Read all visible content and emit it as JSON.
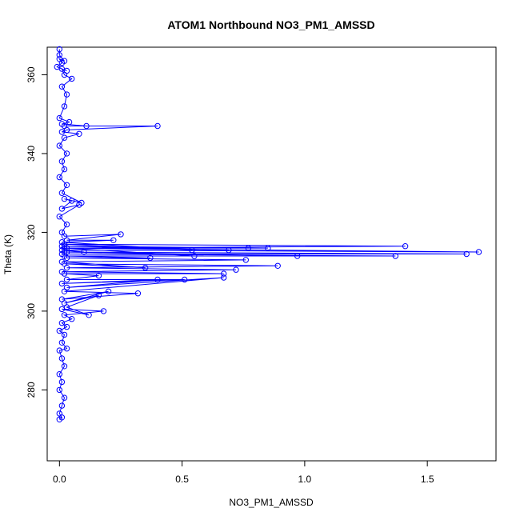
{
  "chart_data": {
    "type": "line",
    "title": "ATOM1 Northbound NO3_PM1_AMSSD",
    "xlabel": "NO3_PM1_AMSSD",
    "ylabel": "Theta (K)",
    "xlim": [
      -0.05,
      1.78
    ],
    "ylim": [
      262,
      367
    ],
    "x_ticks": [
      0.0,
      0.5,
      1.0,
      1.5
    ],
    "x_tick_labels": [
      "0.0",
      "0.5",
      "1.0",
      "1.5"
    ],
    "y_ticks": [
      280,
      300,
      320,
      340,
      360
    ],
    "y_tick_labels": [
      "280",
      "300",
      "320",
      "340",
      "360"
    ],
    "grid": false,
    "colors": {
      "series": "#0000ff",
      "axis": "#000000",
      "background": "#ffffff"
    },
    "series": [
      {
        "marker": "open-circle",
        "points": [
          [
            0.0,
            272.5
          ],
          [
            0.01,
            273.0
          ],
          [
            0.0,
            274.0
          ],
          [
            0.01,
            276.0
          ],
          [
            0.02,
            278.0
          ],
          [
            0.0,
            280.0
          ],
          [
            0.01,
            282.0
          ],
          [
            0.0,
            284.0
          ],
          [
            0.02,
            286.0
          ],
          [
            0.01,
            288.0
          ],
          [
            0.0,
            290.0
          ],
          [
            0.03,
            290.5
          ],
          [
            0.01,
            292.0
          ],
          [
            0.02,
            294.0
          ],
          [
            0.0,
            295.0
          ],
          [
            0.03,
            296.0
          ],
          [
            0.01,
            297.0
          ],
          [
            0.05,
            298.0
          ],
          [
            0.02,
            299.0
          ],
          [
            0.18,
            300.0
          ],
          [
            0.01,
            300.5
          ],
          [
            0.12,
            299.0
          ],
          [
            0.03,
            301.0
          ],
          [
            0.16,
            304.0
          ],
          [
            0.02,
            302.0
          ],
          [
            0.2,
            305.0
          ],
          [
            0.01,
            303.0
          ],
          [
            0.32,
            304.5
          ],
          [
            0.02,
            305.0
          ],
          [
            0.67,
            308.5
          ],
          [
            0.03,
            306.0
          ],
          [
            0.4,
            308.0
          ],
          [
            0.01,
            307.0
          ],
          [
            0.51,
            308.0
          ],
          [
            0.03,
            308.0
          ],
          [
            0.16,
            309.0
          ],
          [
            0.02,
            309.5
          ],
          [
            0.67,
            309.5
          ],
          [
            0.01,
            310.0
          ],
          [
            0.72,
            310.5
          ],
          [
            0.03,
            311.0
          ],
          [
            0.89,
            311.5
          ],
          [
            0.02,
            312.0
          ],
          [
            0.35,
            311.0
          ],
          [
            0.01,
            312.5
          ],
          [
            0.76,
            313.0
          ],
          [
            0.03,
            313.5
          ],
          [
            0.37,
            313.5
          ],
          [
            0.02,
            314.0
          ],
          [
            1.37,
            314.0
          ],
          [
            0.01,
            314.5
          ],
          [
            1.66,
            314.5
          ],
          [
            0.02,
            315.0
          ],
          [
            0.97,
            314.0
          ],
          [
            0.03,
            315.0
          ],
          [
            0.1,
            315.0
          ],
          [
            0.01,
            315.5
          ],
          [
            1.71,
            315.0
          ],
          [
            0.02,
            316.0
          ],
          [
            0.55,
            314.0
          ],
          [
            0.03,
            316.0
          ],
          [
            0.69,
            315.5
          ],
          [
            0.01,
            316.5
          ],
          [
            0.77,
            316.0
          ],
          [
            0.02,
            316.5
          ],
          [
            0.85,
            316.0
          ],
          [
            0.03,
            316.0
          ],
          [
            1.41,
            316.5
          ],
          [
            0.02,
            317.0
          ],
          [
            0.54,
            315.5
          ],
          [
            0.01,
            317.5
          ],
          [
            0.22,
            318.0
          ],
          [
            0.03,
            318.0
          ],
          [
            0.25,
            319.5
          ],
          [
            0.02,
            319.0
          ],
          [
            0.01,
            320.0
          ],
          [
            0.03,
            322.0
          ],
          [
            0.0,
            324.0
          ],
          [
            0.08,
            327.0
          ],
          [
            0.01,
            326.0
          ],
          [
            0.05,
            328.0
          ],
          [
            0.02,
            328.5
          ],
          [
            0.09,
            327.5
          ],
          [
            0.01,
            330.0
          ],
          [
            0.03,
            332.0
          ],
          [
            0.0,
            334.0
          ],
          [
            0.02,
            336.0
          ],
          [
            0.01,
            338.0
          ],
          [
            0.03,
            340.0
          ],
          [
            0.0,
            342.0
          ],
          [
            0.02,
            344.0
          ],
          [
            0.08,
            345.0
          ],
          [
            0.01,
            345.5
          ],
          [
            0.03,
            346.0
          ],
          [
            0.4,
            347.0
          ],
          [
            0.02,
            347.0
          ],
          [
            0.11,
            347.0
          ],
          [
            0.01,
            347.5
          ],
          [
            0.04,
            348.0
          ],
          [
            0.0,
            349.0
          ],
          [
            0.02,
            352.0
          ],
          [
            0.03,
            355.0
          ],
          [
            0.01,
            357.0
          ],
          [
            0.05,
            359.0
          ],
          [
            0.02,
            360.0
          ],
          [
            0.01,
            361.5
          ],
          [
            0.03,
            361.0
          ],
          [
            -0.01,
            362.0
          ],
          [
            0.01,
            363.0
          ],
          [
            0.0,
            364.0
          ],
          [
            0.02,
            363.5
          ],
          [
            0.0,
            365.0
          ],
          [
            0.0,
            366.5
          ]
        ]
      }
    ]
  }
}
